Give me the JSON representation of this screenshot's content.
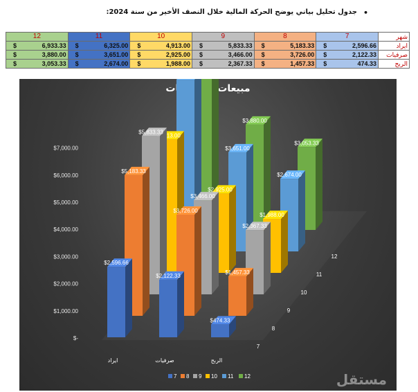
{
  "heading": "جدول تحليل بياني يوضح الحركة المالية خلال النصف الأخير من سنة 2024:",
  "table": {
    "corner_label": "شهر",
    "currency_symbol": "$",
    "months": [
      "7",
      "8",
      "9",
      "10",
      "11",
      "12"
    ],
    "month_colors": [
      "#a9c4eb",
      "#f4b183",
      "#bfbfbf",
      "#ffd966",
      "#4472c4",
      "#a9d18e"
    ],
    "rows": [
      {
        "label": "ايراد",
        "values": [
          "2,596.66",
          "5,183.33",
          "5,833.33",
          "4,913.00",
          "6,325.00",
          "6,933.33"
        ]
      },
      {
        "label": "صرفيات",
        "values": [
          "2,122.33",
          "3,726.00",
          "3,466.00",
          "2,925.00",
          "3,651.00",
          "3,880.00"
        ]
      },
      {
        "label": "الربح",
        "values": [
          "474.33",
          "1,457.33",
          "2,367.33",
          "1,988.00",
          "2,674.00",
          "3,053.33"
        ]
      }
    ]
  },
  "chart_data": {
    "type": "bar",
    "title": "مبيعات و صرفيات",
    "categories": [
      "ايراد",
      "صرفيات",
      "الربح"
    ],
    "series": [
      {
        "name": "7",
        "color": "#4472c4",
        "values": [
          2596.66,
          2122.33,
          474.33
        ]
      },
      {
        "name": "8",
        "color": "#ed7d31",
        "values": [
          5183.33,
          3726.0,
          1457.33
        ]
      },
      {
        "name": "9",
        "color": "#a5a5a5",
        "values": [
          5833.33,
          3466.0,
          2367.33
        ]
      },
      {
        "name": "10",
        "color": "#ffc000",
        "values": [
          4913.0,
          2925.0,
          1988.0
        ]
      },
      {
        "name": "11",
        "color": "#5b9bd5",
        "values": [
          6325.0,
          3651.0,
          2674.0
        ]
      },
      {
        "name": "12",
        "color": "#70ad47",
        "values": [
          6933.33,
          3880.0,
          3053.33
        ]
      }
    ],
    "value_labels": [
      [
        "$2,596.66",
        "$2,122.33",
        "$474.33"
      ],
      [
        "$5,183.33",
        "$3,726.00",
        "$1,457.33"
      ],
      [
        "$5,833.33",
        "$3,466.00",
        "$2,367.33"
      ],
      [
        "$4,913.00",
        "$2,925.00",
        "$1,988.00"
      ],
      [
        "$6,325.00",
        "$3,651.00",
        "$2,674.00"
      ],
      [
        "$6,933.33",
        "$3,880.00",
        "$3,053.33"
      ]
    ],
    "y_ticks": [
      0,
      1000,
      2000,
      3000,
      4000,
      5000,
      6000,
      7000
    ],
    "y_tick_labels": [
      "$-",
      "$1,000.00",
      "$2,000.00",
      "$3,000.00",
      "$4,000.00",
      "$5,000.00",
      "$6,000.00",
      "$7,000.00"
    ],
    "ylim": [
      0,
      7000
    ],
    "depth_labels": [
      "7",
      "8",
      "9",
      "10",
      "11",
      "12"
    ],
    "legend": [
      "7",
      "8",
      "9",
      "10",
      "11",
      "12"
    ],
    "legend_position": "bottom",
    "grid": false
  },
  "watermark": "مستقل"
}
